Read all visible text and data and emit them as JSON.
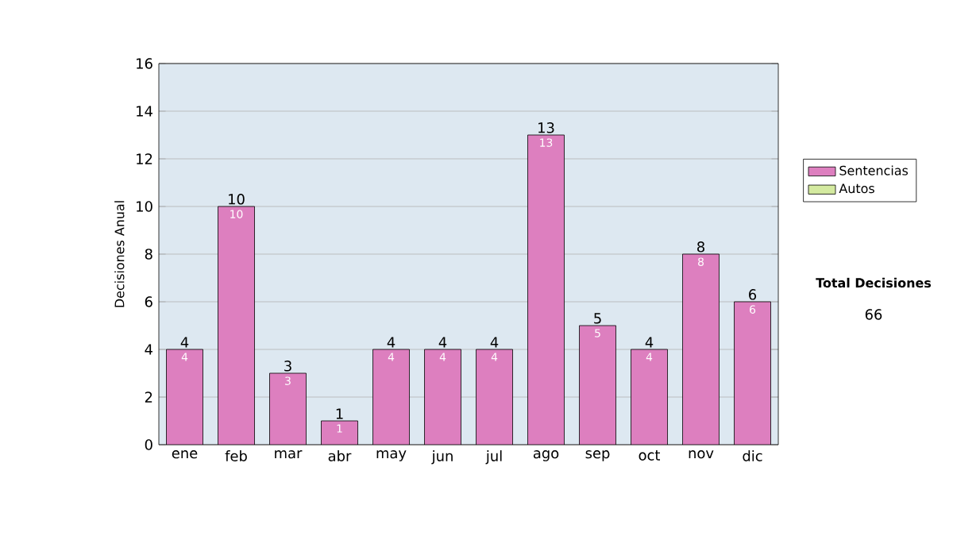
{
  "chart_data": {
    "type": "bar",
    "ylabel": "Decisiones Anual",
    "categories": [
      "ene",
      "feb",
      "mar",
      "abr",
      "may",
      "jun",
      "jul",
      "ago",
      "sep",
      "oct",
      "nov",
      "dic"
    ],
    "series": [
      {
        "name": "Sentencias",
        "color": "#dd7fbf",
        "values": [
          4,
          10,
          3,
          1,
          4,
          4,
          4,
          13,
          5,
          4,
          8,
          6
        ],
        "value_labels": [
          "4",
          "10",
          "3",
          "1",
          "4",
          "4",
          "4",
          "13",
          "5",
          "4",
          "8",
          "6"
        ]
      },
      {
        "name": "Autos",
        "color": "#d4eaa0",
        "values": [
          0,
          0,
          0,
          0,
          0,
          0,
          0,
          0,
          0,
          0,
          0,
          0
        ]
      }
    ],
    "stacked": true,
    "totals": [
      "4",
      "10",
      "3",
      "1",
      "4",
      "4",
      "4",
      "13",
      "5",
      "4",
      "8",
      "6"
    ],
    "ylim": [
      0,
      16
    ],
    "yticks": [
      0,
      2,
      4,
      6,
      8,
      10,
      12,
      14,
      16
    ],
    "grid": "y",
    "legend": "right",
    "annotations": [
      "Total Decisiones",
      "66"
    ]
  }
}
